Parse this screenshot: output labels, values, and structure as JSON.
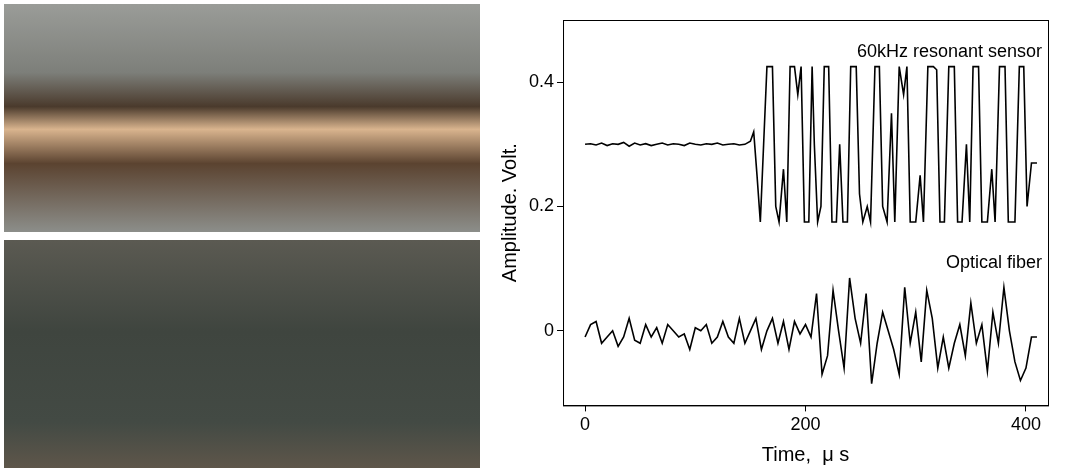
{
  "chart_data": {
    "type": "line",
    "x_label": "Time,  μ s",
    "y_label": "Amplitude. Volt.",
    "xlim": [
      -20,
      420
    ],
    "xticks": [
      0,
      200,
      400
    ],
    "ylim": [
      -0.12,
      0.5
    ],
    "yticks": [
      0,
      0.2,
      0.4
    ],
    "grid": false,
    "series": [
      {
        "name": "60kHz resonant sensor",
        "color": "#000000",
        "x": [
          0,
          5,
          10,
          15,
          20,
          25,
          30,
          35,
          40,
          45,
          50,
          55,
          60,
          65,
          70,
          75,
          80,
          85,
          90,
          95,
          100,
          105,
          110,
          115,
          120,
          125,
          130,
          135,
          140,
          145,
          150,
          153,
          156,
          159,
          162,
          165,
          170,
          173,
          176,
          180,
          183,
          186,
          190,
          193,
          196,
          199,
          203,
          206,
          208,
          211,
          214,
          217,
          221,
          224,
          228,
          231,
          234,
          238,
          241,
          246,
          249,
          252,
          256,
          259,
          263,
          267,
          270,
          274,
          278,
          281,
          285,
          289,
          292,
          295,
          300,
          304,
          307,
          311,
          316,
          319,
          322,
          326,
          330,
          335,
          338,
          342,
          346,
          349,
          352,
          357,
          360,
          365,
          369,
          372,
          376,
          381,
          384,
          390,
          394,
          398,
          401,
          405,
          410
        ],
        "values": [
          0.3,
          0.301,
          0.299,
          0.302,
          0.298,
          0.301,
          0.3,
          0.303,
          0.297,
          0.302,
          0.299,
          0.301,
          0.298,
          0.3,
          0.302,
          0.299,
          0.301,
          0.3,
          0.298,
          0.302,
          0.3,
          0.299,
          0.301,
          0.3,
          0.302,
          0.299,
          0.3,
          0.301,
          0.299,
          0.3,
          0.305,
          0.32,
          0.25,
          0.175,
          0.3,
          0.425,
          0.425,
          0.2,
          0.175,
          0.26,
          0.175,
          0.425,
          0.425,
          0.38,
          0.425,
          0.175,
          0.175,
          0.425,
          0.3,
          0.175,
          0.2,
          0.425,
          0.425,
          0.175,
          0.175,
          0.3,
          0.175,
          0.175,
          0.425,
          0.425,
          0.22,
          0.175,
          0.2,
          0.175,
          0.425,
          0.425,
          0.2,
          0.175,
          0.35,
          0.175,
          0.425,
          0.38,
          0.425,
          0.175,
          0.175,
          0.25,
          0.175,
          0.425,
          0.425,
          0.42,
          0.175,
          0.175,
          0.425,
          0.425,
          0.175,
          0.175,
          0.3,
          0.175,
          0.425,
          0.425,
          0.175,
          0.175,
          0.26,
          0.175,
          0.425,
          0.425,
          0.175,
          0.175,
          0.425,
          0.425,
          0.2,
          0.27,
          0.27
        ]
      },
      {
        "name": "Optical fiber",
        "color": "#000000",
        "x": [
          0,
          5,
          10,
          15,
          20,
          25,
          30,
          35,
          40,
          45,
          50,
          55,
          60,
          65,
          70,
          75,
          80,
          85,
          90,
          95,
          100,
          105,
          110,
          115,
          120,
          125,
          130,
          135,
          140,
          145,
          150,
          155,
          160,
          165,
          170,
          175,
          180,
          185,
          190,
          195,
          200,
          205,
          210,
          215,
          220,
          225,
          230,
          235,
          240,
          245,
          250,
          255,
          260,
          265,
          270,
          275,
          280,
          285,
          290,
          295,
          300,
          305,
          310,
          315,
          320,
          325,
          330,
          335,
          340,
          345,
          350,
          355,
          360,
          365,
          370,
          375,
          380,
          385,
          390,
          395,
          400,
          405,
          410
        ],
        "values": [
          -0.01,
          0.01,
          0.015,
          -0.02,
          -0.01,
          0.0,
          -0.025,
          -0.01,
          0.02,
          -0.015,
          -0.02,
          0.01,
          -0.01,
          0.005,
          -0.02,
          0.01,
          0.0,
          -0.01,
          -0.005,
          -0.03,
          0.005,
          0.0,
          0.01,
          -0.02,
          -0.01,
          0.015,
          -0.01,
          -0.02,
          0.02,
          -0.02,
          0.0,
          0.02,
          -0.03,
          0.0,
          0.02,
          -0.02,
          0.015,
          -0.03,
          0.015,
          -0.005,
          0.01,
          -0.01,
          0.06,
          -0.07,
          -0.04,
          0.065,
          0.0,
          -0.06,
          0.085,
          0.02,
          -0.02,
          0.06,
          -0.085,
          -0.02,
          0.03,
          0.0,
          -0.03,
          -0.07,
          0.07,
          -0.02,
          0.03,
          -0.05,
          0.065,
          0.02,
          -0.06,
          -0.01,
          -0.06,
          -0.02,
          0.01,
          -0.04,
          0.045,
          -0.02,
          0.01,
          -0.065,
          0.03,
          -0.02,
          0.07,
          0.0,
          -0.05,
          -0.08,
          -0.06,
          -0.01,
          -0.01
        ]
      }
    ]
  }
}
